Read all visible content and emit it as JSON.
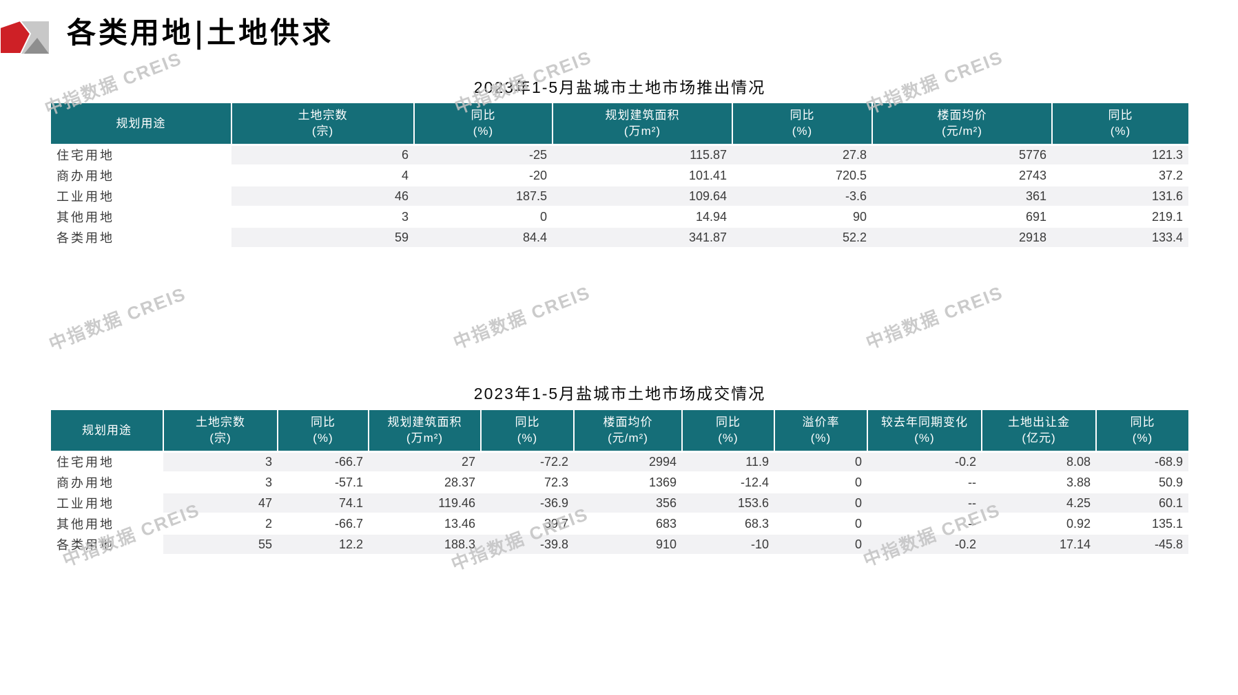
{
  "page": {
    "title": "各类用地|土地供求",
    "watermark": "中指数据 CREIS"
  },
  "colors": {
    "table_header_teal": "#156e78",
    "row_stripe": "#f2f2f4",
    "logo_red": "#ce2026",
    "logo_gray_light": "#c8c8c8",
    "logo_gray_dark": "#8e8e8e",
    "watermark_gray": "#c3c3c3"
  },
  "tables": [
    {
      "title": "2023年1-5月盐城市土地市场推出情况",
      "columns": [
        {
          "title": "规划用途",
          "unit": ""
        },
        {
          "title": "土地宗数",
          "unit": "(宗)"
        },
        {
          "title": "同比",
          "unit": "(%)"
        },
        {
          "title": "规划建筑面积",
          "unit": "(万m²)"
        },
        {
          "title": "同比",
          "unit": "(%)"
        },
        {
          "title": "楼面均价",
          "unit": "(元/m²)"
        },
        {
          "title": "同比",
          "unit": "(%)"
        }
      ],
      "rows": [
        [
          "住宅用地",
          "6",
          "-25",
          "115.87",
          "27.8",
          "5776",
          "121.3"
        ],
        [
          "商办用地",
          "4",
          "-20",
          "101.41",
          "720.5",
          "2743",
          "37.2"
        ],
        [
          "工业用地",
          "46",
          "187.5",
          "109.64",
          "-3.6",
          "361",
          "131.6"
        ],
        [
          "其他用地",
          "3",
          "0",
          "14.94",
          "90",
          "691",
          "219.1"
        ],
        [
          "各类用地",
          "59",
          "84.4",
          "341.87",
          "52.2",
          "2918",
          "133.4"
        ]
      ]
    },
    {
      "title": "2023年1-5月盐城市土地市场成交情况",
      "columns": [
        {
          "title": "规划用途",
          "unit": ""
        },
        {
          "title": "土地宗数",
          "unit": "(宗)"
        },
        {
          "title": "同比",
          "unit": "(%)"
        },
        {
          "title": "规划建筑面积",
          "unit": "(万m²)"
        },
        {
          "title": "同比",
          "unit": "(%)"
        },
        {
          "title": "楼面均价",
          "unit": "(元/m²)"
        },
        {
          "title": "同比",
          "unit": "(%)"
        },
        {
          "title": "溢价率",
          "unit": "(%)"
        },
        {
          "title": "较去年同期变化",
          "unit": "(%)"
        },
        {
          "title": "土地出让金",
          "unit": "(亿元)"
        },
        {
          "title": "同比",
          "unit": "(%)"
        }
      ],
      "rows": [
        [
          "住宅用地",
          "3",
          "-66.7",
          "27",
          "-72.2",
          "2994",
          "11.9",
          "0",
          "-0.2",
          "8.08",
          "-68.9"
        ],
        [
          "商办用地",
          "3",
          "-57.1",
          "28.37",
          "72.3",
          "1369",
          "-12.4",
          "0",
          "--",
          "3.88",
          "50.9"
        ],
        [
          "工业用地",
          "47",
          "74.1",
          "119.46",
          "-36.9",
          "356",
          "153.6",
          "0",
          "--",
          "4.25",
          "60.1"
        ],
        [
          "其他用地",
          "2",
          "-66.7",
          "13.46",
          "39.7",
          "683",
          "68.3",
          "0",
          "--",
          "0.92",
          "135.1"
        ],
        [
          "各类用地",
          "55",
          "12.2",
          "188.3",
          "-39.8",
          "910",
          "-10",
          "0",
          "-0.2",
          "17.14",
          "-45.8"
        ]
      ]
    }
  ]
}
